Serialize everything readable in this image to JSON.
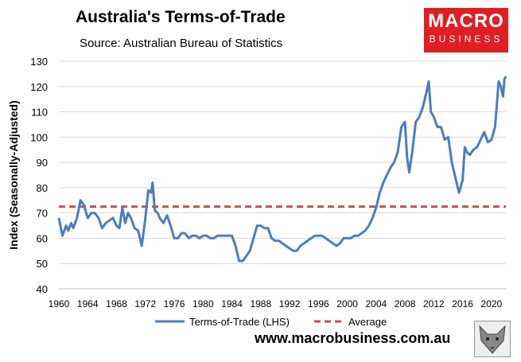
{
  "header": {
    "title": "Australia's Terms-of-Trade",
    "subtitle": "Source: Australian Bureau of Statistics",
    "logo_line1": "MACRO",
    "logo_line2": "BUSINESS"
  },
  "footer": {
    "website": "www.macrobusiness.com.au"
  },
  "colors": {
    "series": "#4a7ebf",
    "average": "#c0504d",
    "grid": "#d9d9d9"
  },
  "chart_data": {
    "type": "line",
    "title": "Australia's Terms-of-Trade",
    "subtitle": "Source: Australian Bureau of Statistics",
    "ylabel": "Index (Seasonally-Adjusted)",
    "xlabel": "",
    "ylim": [
      40,
      130
    ],
    "xlim": [
      1960,
      2022
    ],
    "yticks": [
      40,
      50,
      60,
      70,
      80,
      90,
      100,
      110,
      120,
      130
    ],
    "xticks": [
      1960,
      1964,
      1968,
      1972,
      1976,
      1980,
      1984,
      1988,
      1992,
      1996,
      2000,
      2004,
      2008,
      2012,
      2016,
      2020
    ],
    "grid": "horizontal",
    "legend_position": "bottom",
    "series": [
      {
        "name": "Terms-of-Trade (LHS)",
        "x": [
          1960,
          1960.5,
          1961,
          1961.3,
          1961.7,
          1962,
          1962.5,
          1963,
          1963.5,
          1964,
          1964.5,
          1965,
          1965.5,
          1966,
          1966.5,
          1967,
          1967.5,
          1968,
          1968.4,
          1968.8,
          1969.2,
          1969.6,
          1970,
          1970.5,
          1971,
          1971.5,
          1972,
          1972.4,
          1972.8,
          1973,
          1973.3,
          1973.7,
          1974,
          1974.5,
          1975,
          1975.5,
          1976,
          1976.5,
          1977,
          1977.5,
          1978,
          1978.5,
          1979,
          1979.5,
          1980,
          1980.5,
          1981,
          1981.5,
          1982,
          1983,
          1984,
          1984.5,
          1985,
          1985.5,
          1986,
          1986.5,
          1987,
          1987.5,
          1988,
          1988.5,
          1989,
          1989.5,
          1990,
          1990.5,
          1991,
          1991.5,
          1992,
          1992.5,
          1993,
          1993.5,
          1994,
          1994.5,
          1995,
          1995.5,
          1996,
          1996.5,
          1997,
          1997.5,
          1998,
          1998.5,
          1999,
          1999.5,
          2000,
          2000.5,
          2001,
          2001.5,
          2002,
          2002.5,
          2003,
          2003.5,
          2004,
          2004.5,
          2005,
          2005.5,
          2006,
          2006.5,
          2007,
          2007.5,
          2008,
          2008.3,
          2008.6,
          2009,
          2009.5,
          2010,
          2010.5,
          2011,
          2011.3,
          2011.6,
          2012,
          2012.5,
          2013,
          2013.5,
          2014,
          2014.5,
          2015,
          2015.5,
          2016,
          2016.3,
          2016.6,
          2017,
          2017.5,
          2018,
          2018.5,
          2019,
          2019.5,
          2020,
          2020.5,
          2021,
          2021.3,
          2021.6,
          2021.8,
          2022
        ],
        "values": [
          68,
          61,
          65,
          63,
          66,
          64,
          68,
          75,
          73,
          68,
          70,
          70,
          68,
          64,
          66,
          67,
          68,
          65,
          64,
          72,
          66,
          70,
          68,
          64,
          63,
          57,
          68,
          79,
          78,
          82,
          71,
          70,
          68,
          66,
          69,
          65,
          60,
          60,
          62,
          62,
          60,
          61,
          61,
          60,
          61,
          61,
          60,
          60,
          61,
          61,
          61,
          57,
          51,
          51,
          53,
          55,
          60,
          65,
          65,
          64,
          64,
          60,
          59,
          59,
          58,
          57,
          56,
          55,
          55,
          57,
          58,
          59,
          60,
          61,
          61,
          61,
          60,
          59,
          58,
          57,
          58,
          60,
          60,
          60,
          61,
          61,
          62,
          63,
          65,
          68,
          72,
          78,
          82,
          85,
          88,
          90,
          94,
          104,
          106,
          92,
          86,
          94,
          106,
          108,
          112,
          118,
          122,
          110,
          108,
          104,
          104,
          99,
          100,
          90,
          84,
          78,
          83,
          96,
          94,
          93,
          95,
          96,
          99,
          102,
          98,
          99,
          104,
          122,
          120,
          116,
          123,
          124
        ]
      },
      {
        "name": "Average",
        "x": [
          1960,
          2022
        ],
        "values": [
          72.5,
          72.5
        ]
      }
    ]
  }
}
